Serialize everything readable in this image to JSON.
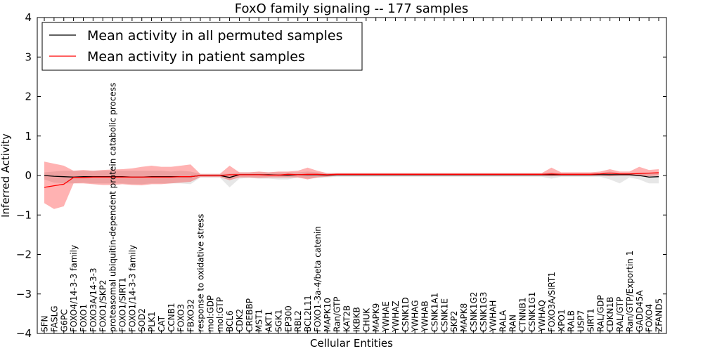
{
  "chart_data": {
    "type": "line",
    "title": "FoxO family signaling -- 177 samples",
    "xlabel": "Cellular Entities",
    "ylabel": "Inferred Activity",
    "ylim": [
      -4,
      4
    ],
    "yticks": [
      -4,
      -3,
      -2,
      -1,
      0,
      1,
      2,
      3,
      4
    ],
    "ytick_labels": [
      "−4",
      "−3",
      "−2",
      "−1",
      "0",
      "1",
      "2",
      "3",
      "4"
    ],
    "legend": {
      "placement": "top-left",
      "entries": [
        {
          "label": "Mean activity in all permuted samples",
          "color": "#000000"
        },
        {
          "label": "Mean activity in patient samples",
          "color": "#ff0000"
        }
      ]
    },
    "categories": [
      "SFN",
      "FASLG",
      "G6PC",
      "FOXO4/14-3-3 family",
      "FOXO1",
      "FOXO3A/14-3-3",
      "FOXO1/SKP2",
      "proteasomal ubiquitin-dependent protein catabolic process",
      "FOXO1/SIRT1",
      "FOXO1/14-3-3 family",
      "SOD2",
      "PLK1",
      "CAT",
      "CCNB1",
      "FOXO3",
      "FBXO32",
      "response to oxidative stress",
      "mol:GDP",
      "mol:GTP",
      "BCL6",
      "CDK2",
      "CREBBP",
      "MST1",
      "AKT1",
      "SGK1",
      "EP300",
      "RBL2",
      "BCL2L11",
      "FOXO1-3a-4/beta catenin",
      "MAPK10",
      "Ran/GTP",
      "KAT2B",
      "IKBKB",
      "CHUK",
      "MAPK9",
      "YWHAE",
      "YWHAZ",
      "CSNK1D",
      "YWHAG",
      "YWHAB",
      "CSNK1A1",
      "CSNK1E",
      "SKP2",
      "MAPK8",
      "CSNK1G2",
      "CSNK1G3",
      "YWHAH",
      "RALA",
      "RAN",
      "CTNNB1",
      "CSNK1G1",
      "YWHAQ",
      "FOXO3A/SIRT1",
      "XPO1",
      "RALB",
      "USP7",
      "SIRT1",
      "RAL/GDP",
      "CDKN1B",
      "RAL/GTP",
      "Ran/GTP/Exportin 1",
      "GADD45A",
      "FOXO4",
      "ZFAND5"
    ],
    "series": [
      {
        "name": "Mean activity in all permuted samples",
        "color": "#000000",
        "values": [
          0.0,
          -0.02,
          -0.03,
          -0.04,
          -0.03,
          -0.03,
          -0.03,
          -0.03,
          -0.03,
          -0.04,
          -0.04,
          -0.03,
          -0.03,
          -0.03,
          -0.03,
          -0.03,
          0.0,
          0.0,
          0.0,
          -0.05,
          0.02,
          0.02,
          0.02,
          0.02,
          0.01,
          0.01,
          0.02,
          0.02,
          0.02,
          0.01,
          0.02,
          0.02,
          0.02,
          0.02,
          0.02,
          0.02,
          0.02,
          0.02,
          0.02,
          0.02,
          0.02,
          0.02,
          0.02,
          0.02,
          0.02,
          0.02,
          0.02,
          0.02,
          0.02,
          0.02,
          0.02,
          0.02,
          0.02,
          0.02,
          0.02,
          0.02,
          0.02,
          0.02,
          0.02,
          0.02,
          0.02,
          0.0,
          -0.04,
          -0.03
        ],
        "lower": [
          -0.1,
          -0.18,
          -0.2,
          -0.2,
          -0.18,
          -0.2,
          -0.2,
          -0.2,
          -0.2,
          -0.22,
          -0.22,
          -0.2,
          -0.2,
          -0.2,
          -0.2,
          -0.22,
          -0.05,
          -0.05,
          -0.05,
          -0.3,
          -0.08,
          -0.06,
          -0.08,
          -0.08,
          -0.1,
          -0.1,
          -0.05,
          -0.08,
          -0.06,
          -0.05,
          -0.03,
          -0.03,
          -0.03,
          -0.03,
          -0.03,
          -0.03,
          -0.03,
          -0.03,
          -0.03,
          -0.03,
          -0.03,
          -0.03,
          -0.03,
          -0.03,
          -0.03,
          -0.03,
          -0.03,
          -0.03,
          -0.03,
          -0.03,
          -0.03,
          -0.03,
          -0.08,
          -0.03,
          -0.03,
          -0.03,
          -0.03,
          -0.03,
          -0.1,
          -0.2,
          -0.05,
          -0.1,
          -0.2,
          -0.2
        ],
        "upper": [
          0.08,
          0.1,
          0.12,
          0.12,
          0.12,
          0.12,
          0.12,
          0.12,
          0.12,
          0.12,
          0.12,
          0.12,
          0.12,
          0.1,
          0.12,
          0.1,
          0.04,
          0.04,
          0.04,
          0.05,
          0.08,
          0.08,
          0.08,
          0.08,
          0.08,
          0.08,
          0.08,
          0.1,
          0.08,
          0.06,
          0.06,
          0.06,
          0.06,
          0.06,
          0.06,
          0.06,
          0.06,
          0.06,
          0.06,
          0.06,
          0.06,
          0.06,
          0.06,
          0.06,
          0.06,
          0.06,
          0.06,
          0.06,
          0.06,
          0.06,
          0.06,
          0.06,
          0.08,
          0.06,
          0.06,
          0.06,
          0.06,
          0.06,
          0.1,
          0.06,
          0.06,
          0.06,
          0.06,
          0.06
        ]
      },
      {
        "name": "Mean activity in patient samples",
        "color": "#ff0000",
        "values": [
          -0.3,
          -0.26,
          -0.22,
          -0.05,
          -0.05,
          -0.04,
          -0.04,
          -0.04,
          -0.04,
          -0.04,
          -0.04,
          -0.04,
          -0.04,
          -0.04,
          -0.03,
          -0.03,
          0.0,
          0.0,
          0.0,
          0.02,
          0.02,
          0.02,
          0.02,
          0.01,
          0.01,
          0.03,
          0.02,
          0.03,
          0.03,
          0.02,
          0.03,
          0.03,
          0.03,
          0.03,
          0.03,
          0.03,
          0.03,
          0.03,
          0.03,
          0.03,
          0.03,
          0.03,
          0.03,
          0.03,
          0.03,
          0.03,
          0.03,
          0.03,
          0.03,
          0.03,
          0.03,
          0.03,
          0.04,
          0.03,
          0.03,
          0.03,
          0.03,
          0.04,
          0.06,
          0.04,
          0.04,
          0.05,
          0.06,
          0.07
        ],
        "lower": [
          -0.7,
          -0.85,
          -0.78,
          -0.2,
          -0.2,
          -0.22,
          -0.24,
          -0.24,
          -0.22,
          -0.24,
          -0.25,
          -0.22,
          -0.22,
          -0.2,
          -0.18,
          -0.16,
          -0.04,
          -0.04,
          -0.04,
          -0.12,
          -0.05,
          -0.05,
          -0.06,
          -0.05,
          -0.05,
          -0.05,
          -0.05,
          -0.1,
          -0.05,
          -0.03,
          -0.01,
          -0.01,
          -0.01,
          -0.01,
          -0.01,
          -0.01,
          -0.01,
          -0.01,
          -0.01,
          -0.01,
          -0.01,
          -0.01,
          -0.01,
          -0.01,
          -0.01,
          -0.01,
          -0.01,
          -0.01,
          -0.01,
          -0.01,
          -0.01,
          -0.01,
          -0.02,
          -0.01,
          -0.01,
          -0.01,
          -0.01,
          0.0,
          -0.02,
          0.0,
          0.0,
          -0.02,
          -0.02,
          0.0
        ],
        "upper": [
          0.35,
          0.3,
          0.25,
          0.12,
          0.14,
          0.12,
          0.14,
          0.15,
          0.16,
          0.18,
          0.22,
          0.25,
          0.22,
          0.22,
          0.25,
          0.28,
          0.04,
          0.04,
          0.04,
          0.25,
          0.08,
          0.08,
          0.1,
          0.08,
          0.1,
          0.1,
          0.12,
          0.2,
          0.12,
          0.06,
          0.06,
          0.06,
          0.06,
          0.06,
          0.06,
          0.06,
          0.06,
          0.06,
          0.06,
          0.06,
          0.06,
          0.06,
          0.06,
          0.06,
          0.06,
          0.06,
          0.06,
          0.06,
          0.06,
          0.06,
          0.06,
          0.06,
          0.2,
          0.08,
          0.08,
          0.08,
          0.08,
          0.1,
          0.16,
          0.1,
          0.1,
          0.22,
          0.14,
          0.16
        ]
      }
    ]
  }
}
